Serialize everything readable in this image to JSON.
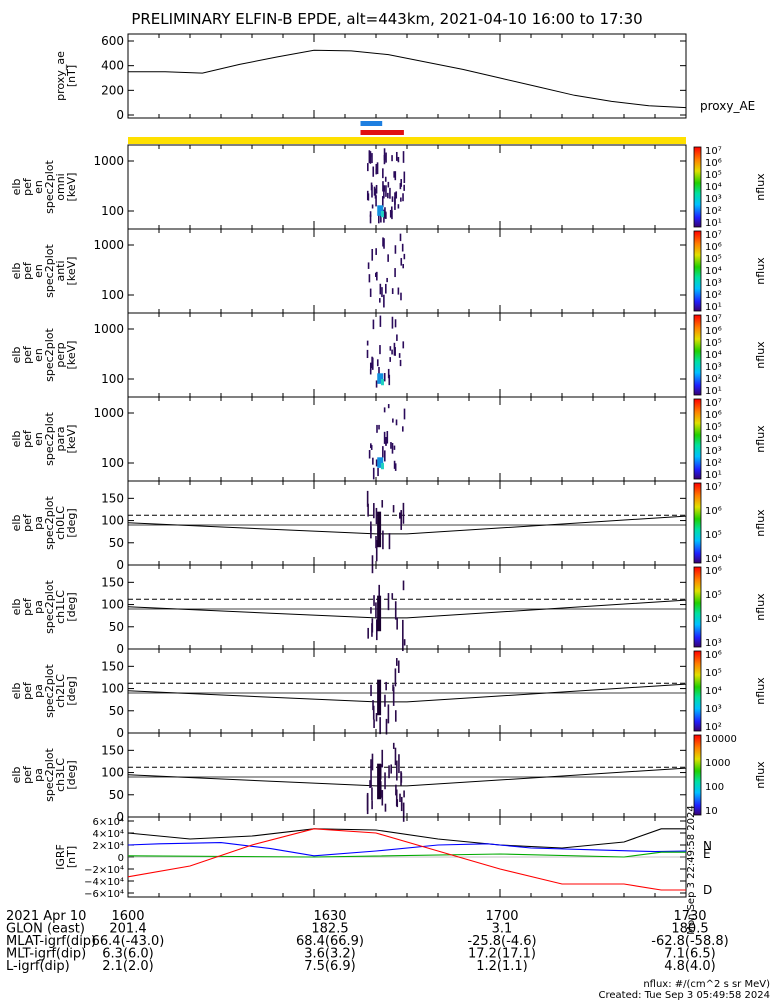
{
  "title": "PRELIMINARY ELFIN-B EPDE, alt=443km, 2021-04-10 16:00 to 17:30",
  "legend": {
    "proxy_ae": "proxy_AE"
  },
  "panels": [
    {
      "id": "ae",
      "type": "line",
      "ylabel": [
        "proxy_ae",
        "[nT]"
      ],
      "yticks": [
        "600",
        "400",
        "200",
        "0"
      ],
      "ylim": [
        0,
        600
      ]
    },
    {
      "id": "omni",
      "type": "spectrogram",
      "ylabel": [
        "elb",
        "pef",
        "en",
        "spec2plot",
        "omni",
        "[keV]"
      ],
      "yticks": [
        "1000",
        "100"
      ],
      "log": true,
      "cblabel": "nflux",
      "cbticks": [
        "10⁷",
        "10⁶",
        "10⁵",
        "10⁴",
        "10³",
        "10²",
        "10¹"
      ]
    },
    {
      "id": "anti",
      "type": "spectrogram",
      "ylabel": [
        "elb",
        "pef",
        "en",
        "spec2plot",
        "anti",
        "[keV]"
      ],
      "yticks": [
        "1000",
        "100"
      ],
      "log": true,
      "cblabel": "nflux",
      "cbticks": [
        "10⁷",
        "10⁶",
        "10⁵",
        "10⁴",
        "10³",
        "10²",
        "10¹"
      ]
    },
    {
      "id": "perp",
      "type": "spectrogram",
      "ylabel": [
        "elb",
        "pef",
        "en",
        "spec2plot",
        "perp",
        "[keV]"
      ],
      "yticks": [
        "1000",
        "100"
      ],
      "log": true,
      "cblabel": "nflux",
      "cbticks": [
        "10⁷",
        "10⁶",
        "10⁵",
        "10⁴",
        "10³",
        "10²",
        "10¹"
      ]
    },
    {
      "id": "para",
      "type": "spectrogram",
      "ylabel": [
        "elb",
        "pef",
        "en",
        "spec2plot",
        "para",
        "[keV]"
      ],
      "yticks": [
        "1000",
        "100"
      ],
      "log": true,
      "cblabel": "nflux",
      "cbticks": [
        "10⁷",
        "10⁶",
        "10⁵",
        "10⁴",
        "10³",
        "10²",
        "10¹"
      ]
    },
    {
      "id": "ch0",
      "type": "pitch",
      "ylabel": [
        "elb",
        "pef",
        "pa",
        "spec2plot",
        "ch0LC",
        "[deg]"
      ],
      "yticks": [
        "150",
        "100",
        "50",
        "0"
      ],
      "ylim": [
        0,
        180
      ],
      "cblabel": "nflux",
      "cbticks": [
        "10⁷",
        "10⁶",
        "10⁵",
        "10⁴"
      ]
    },
    {
      "id": "ch1",
      "type": "pitch",
      "ylabel": [
        "elb",
        "pef",
        "pa",
        "spec2plot",
        "ch1LC",
        "[deg]"
      ],
      "yticks": [
        "150",
        "100",
        "50",
        "0"
      ],
      "ylim": [
        0,
        180
      ],
      "cblabel": "nflux",
      "cbticks": [
        "10⁶",
        "10⁵",
        "10⁴",
        "10³"
      ]
    },
    {
      "id": "ch2",
      "type": "pitch",
      "ylabel": [
        "elb",
        "pef",
        "pa",
        "spec2plot",
        "ch2LC",
        "[deg]"
      ],
      "yticks": [
        "150",
        "100",
        "50",
        "0"
      ],
      "ylim": [
        0,
        180
      ],
      "cblabel": "nflux",
      "cbticks": [
        "10⁶",
        "10⁵",
        "10⁴",
        "10³",
        "10²"
      ]
    },
    {
      "id": "ch3",
      "type": "pitch",
      "ylabel": [
        "elb",
        "pef",
        "pa",
        "spec2plot",
        "ch3LC",
        "[deg]"
      ],
      "yticks": [
        "150",
        "100",
        "50",
        "0"
      ],
      "ylim": [
        0,
        180
      ],
      "cblabel": "nflux",
      "cbticks": [
        "10000",
        "1000",
        "100",
        "10"
      ]
    },
    {
      "id": "igrf",
      "type": "line",
      "ylabel": [
        "IGRF",
        "[nT]"
      ],
      "yticks": [
        "6×10⁴",
        "4×10⁴",
        "2×10⁴",
        "0",
        "−2×10⁴",
        "−4×10⁴",
        "−6×10⁴"
      ],
      "ylim": [
        -60000,
        60000
      ]
    }
  ],
  "chart_data": {
    "type": "line",
    "x_ticks": [
      "1600",
      "1630",
      "1700",
      "1730"
    ],
    "x_range_minutes": [
      0,
      90
    ],
    "ae": {
      "name": "proxy_AE",
      "x": [
        0,
        6,
        12,
        18,
        24,
        30,
        36,
        42,
        48,
        54,
        60,
        66,
        72,
        78,
        84,
        90
      ],
      "values": [
        350,
        350,
        340,
        410,
        470,
        525,
        520,
        490,
        430,
        370,
        300,
        230,
        160,
        110,
        75,
        60
      ]
    },
    "igrf": {
      "components": [
        {
          "name": "",
          "color": "#000000",
          "x": [
            0,
            10,
            20,
            30,
            40,
            50,
            60,
            70,
            80,
            86,
            90
          ],
          "values": [
            40000,
            30000,
            35000,
            47000,
            45000,
            30000,
            20000,
            15000,
            25000,
            47000,
            47000
          ]
        },
        {
          "name": "N",
          "color": "#0000ff",
          "x": [
            0,
            5,
            15,
            23,
            30,
            40,
            50,
            58,
            65,
            75,
            85,
            90
          ],
          "values": [
            20000,
            22000,
            24000,
            14000,
            2000,
            10000,
            20000,
            22000,
            15000,
            12000,
            9000,
            10000
          ]
        },
        {
          "name": "E",
          "color": "#00aa00",
          "x": [
            0,
            30,
            60,
            80,
            86,
            90
          ],
          "values": [
            2000,
            0,
            5000,
            0,
            8000,
            8000
          ]
        },
        {
          "name": "D",
          "color": "#ff0000",
          "x": [
            0,
            10,
            20,
            30,
            40,
            50,
            60,
            70,
            80,
            86,
            90
          ],
          "values": [
            -33000,
            -15000,
            20000,
            47000,
            40000,
            10000,
            -20000,
            -45000,
            -45000,
            -55000,
            -55000
          ]
        }
      ]
    },
    "loss_cone_deg": {
      "x": [
        0,
        40,
        45,
        90
      ],
      "solid_low": [
        95,
        70,
        70,
        110
      ],
      "dashed": [
        112,
        112,
        112,
        112
      ]
    },
    "event_window_minutes": [
      38.5,
      44.5
    ],
    "science_bars": [
      {
        "color": "#1e7fe0",
        "x": [
          37.5,
          41
        ]
      },
      {
        "color": "#e01010",
        "x": [
          37.5,
          44.5
        ]
      }
    ]
  },
  "footer": {
    "rows": [
      [
        "2021 Apr 10",
        "1600",
        "1630",
        "1700",
        "1730"
      ],
      [
        "GLON (east)",
        "201.4",
        "182.5",
        "3.1",
        "180.5"
      ],
      [
        "MLAT-igrf(dip)",
        "66.4(-43.0)",
        "68.4(66.9)",
        "-25.8(-4.6)",
        "-62.8(-58.8)"
      ],
      [
        "MLT-igrf(dip)",
        "6.3(6.0)",
        "3.6(3.2)",
        "17.2(17.1)",
        "7.1(6.5)"
      ],
      [
        "L-igrf(dip)",
        "2.1(2.0)",
        "7.5(6.9)",
        "1.2(1.1)",
        "4.8(4.0)"
      ]
    ],
    "units_note": "nflux: #/(cm^2 s sr MeV)",
    "created": "Created: Tue Sep  3 05:49:58 2024",
    "side_stamp": "Mon Sep  3 22:49:58 2024"
  },
  "colors": {
    "yellow_bar": "#ffe000",
    "accent_blue": "#1e7fe0",
    "accent_red": "#e01010"
  }
}
